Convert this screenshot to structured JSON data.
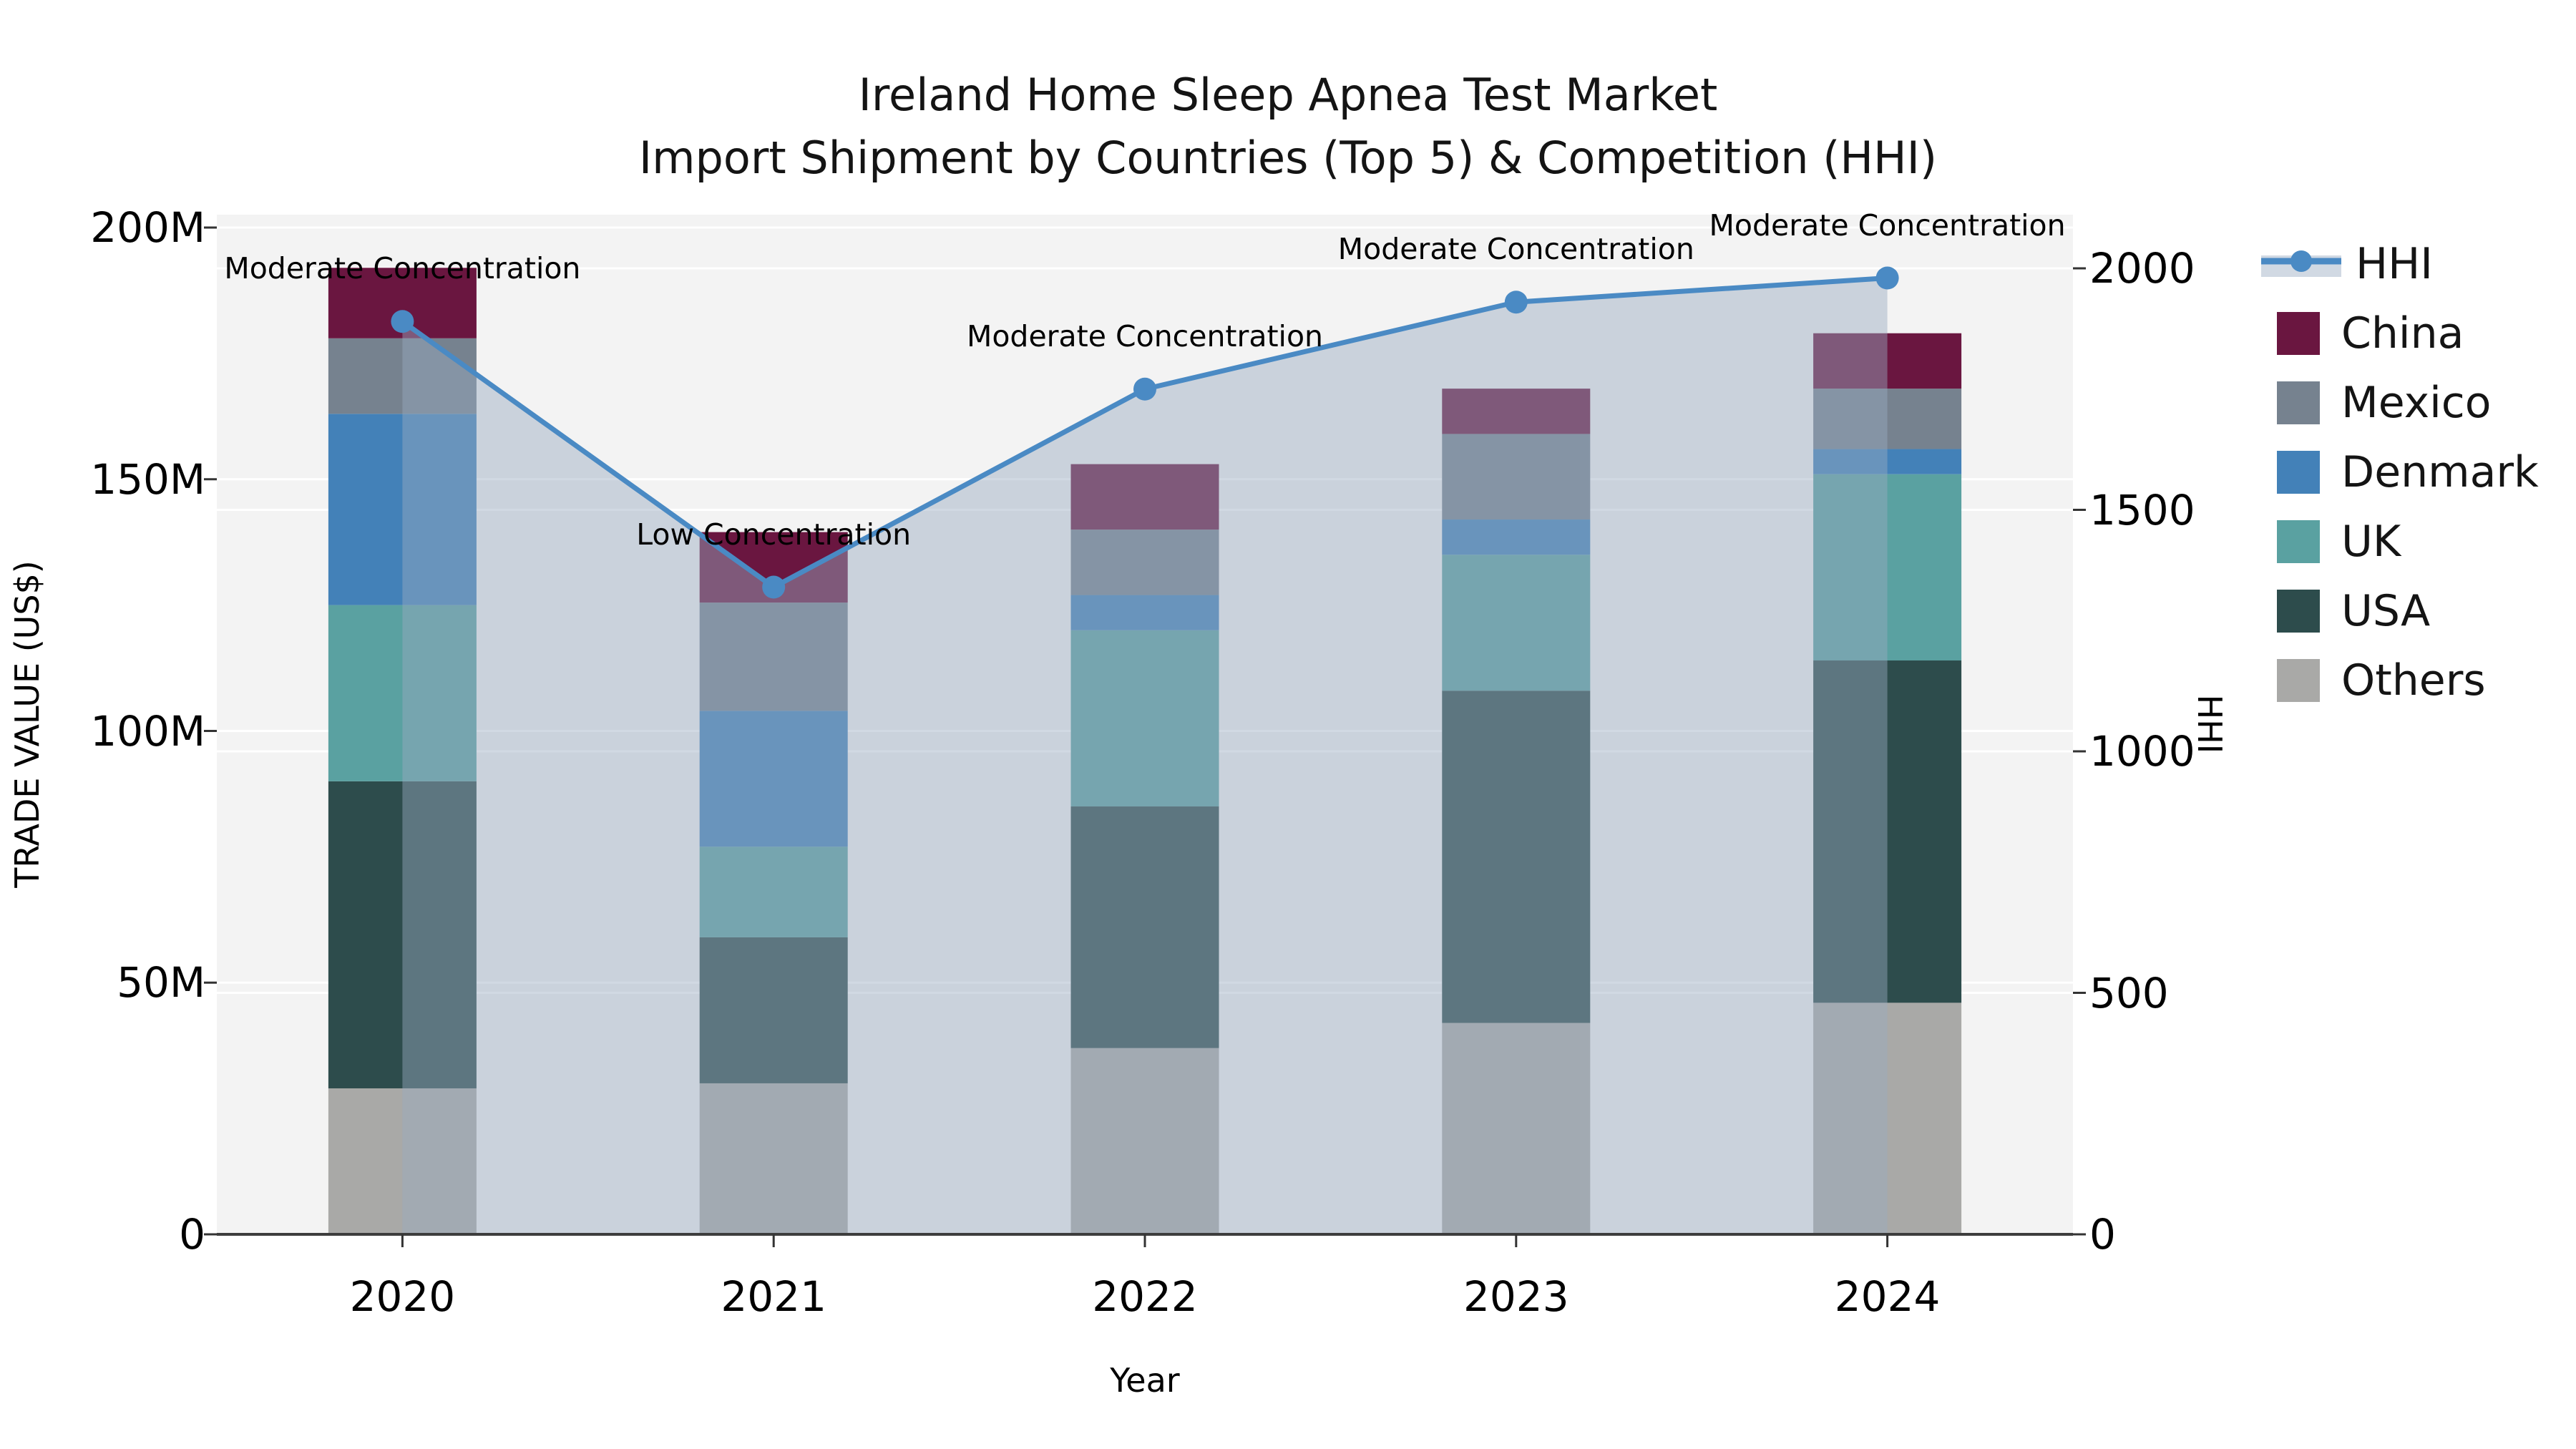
{
  "title": {
    "line1": "Ireland Home Sleep Apnea Test Market",
    "line2": "Import Shipment by Countries (Top 5) & Competition (HHI)"
  },
  "colors": {
    "plot_background": "#f3f3f3",
    "gridline": "#ffffff",
    "axis_line": "#3d3d3d",
    "hhi_line": "#4a8ac4",
    "hhi_area_fill": "rgba(154,170,194,0.45)"
  },
  "chart_data": {
    "type": "bar",
    "subtype": "stacked-bars-with-line-overlay",
    "categories": [
      "2020",
      "2021",
      "2022",
      "2023",
      "2024"
    ],
    "value_unit": "M US$ (trade value, left axis)",
    "series": [
      {
        "name": "Others",
        "color": "#a9a9a7",
        "values": [
          29,
          30,
          37,
          42,
          46
        ]
      },
      {
        "name": "USA",
        "color": "#2d4c4c",
        "values": [
          61,
          29,
          48,
          66,
          68
        ]
      },
      {
        "name": "UK",
        "color": "#5aa1a1",
        "values": [
          35,
          18,
          35,
          27,
          37
        ]
      },
      {
        "name": "Denmark",
        "color": "#4381b8",
        "values": [
          38,
          27,
          7,
          7,
          5
        ]
      },
      {
        "name": "Mexico",
        "color": "#76828f",
        "values": [
          15,
          21.5,
          13,
          17,
          12
        ]
      },
      {
        "name": "China",
        "color": "#6a1640",
        "values": [
          14,
          14,
          13,
          9,
          11
        ]
      }
    ],
    "line": {
      "name": "HHI",
      "color": "#4a8ac4",
      "fill_color": "rgba(154,170,194,0.45)",
      "values": [
        1890,
        1340,
        1750,
        1930,
        1980
      ]
    },
    "annotations": [
      "Moderate Concentration",
      "Low Concentration",
      "Moderate Concentration",
      "Moderate Concentration",
      "Moderate Concentration"
    ],
    "y_left": {
      "label": "TRADE VALUE (US$)",
      "max": 200,
      "ticks": [
        0,
        50,
        100,
        150,
        200
      ],
      "tick_labels": [
        "0",
        "50M",
        "100M",
        "150M",
        "200M"
      ]
    },
    "y_right": {
      "label": "HHI",
      "max": 2000,
      "ticks": [
        0,
        500,
        1000,
        1500,
        2000
      ],
      "tick_labels": [
        "0",
        "500",
        "1000",
        "1500",
        "2000"
      ]
    },
    "x_label": "Year",
    "grid": true,
    "legend_position": "right"
  },
  "legend": {
    "items": [
      {
        "label": "HHI",
        "swatch": "line"
      },
      {
        "label": "China",
        "swatch": "square",
        "color": "#6a1640"
      },
      {
        "label": "Mexico",
        "swatch": "square",
        "color": "#76828f"
      },
      {
        "label": "Denmark",
        "swatch": "square",
        "color": "#4381b8"
      },
      {
        "label": "UK",
        "swatch": "square",
        "color": "#5aa1a1"
      },
      {
        "label": "USA",
        "swatch": "square",
        "color": "#2d4c4c"
      },
      {
        "label": "Others",
        "swatch": "square",
        "color": "#a9a9a7"
      }
    ]
  }
}
